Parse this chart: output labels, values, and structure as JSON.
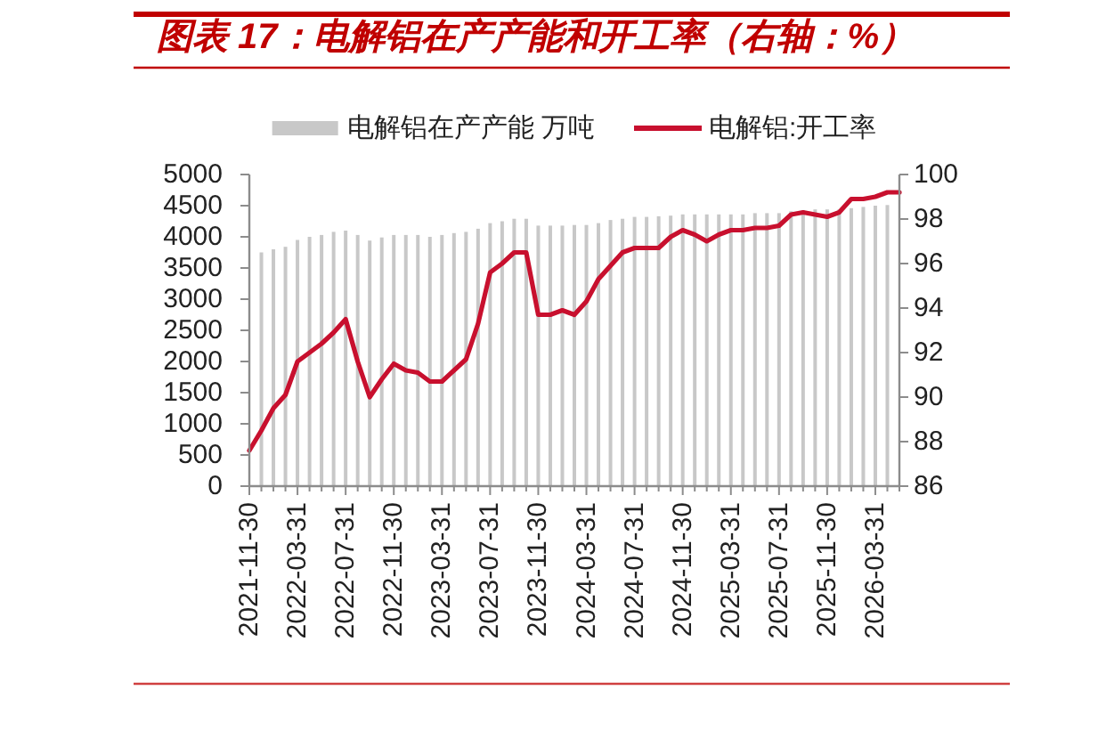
{
  "chart_data": {
    "type": "bar",
    "title": "图表 17：电解铝在产产能和开工率（右轴：%）",
    "categories": [
      "2021-11-30",
      null,
      null,
      null,
      "2022-03-31",
      null,
      null,
      null,
      "2022-07-31",
      null,
      null,
      null,
      "2022-11-30",
      null,
      null,
      null,
      "2023-03-31",
      null,
      null,
      null,
      "2023-07-31",
      null,
      null,
      null,
      "2023-11-30",
      null,
      null,
      null,
      "2024-03-31",
      null,
      null,
      null,
      "2024-07-31",
      null,
      null,
      null,
      "2024-11-30",
      null,
      null,
      null,
      "2025-03-31",
      null,
      null,
      null,
      "2025-07-31",
      null,
      null,
      null,
      "2025-11-30",
      null,
      null,
      null,
      "2026-03-31",
      null,
      null
    ],
    "series": [
      {
        "name": "电解铝在产产能 万吨",
        "color": "#c8c8c8",
        "values": [
          null,
          3750,
          3800,
          3840,
          3950,
          4000,
          4030,
          4080,
          4100,
          4030,
          3940,
          3990,
          4030,
          4030,
          4030,
          4000,
          4030,
          4060,
          4080,
          4130,
          4220,
          4250,
          4290,
          4290,
          4180,
          4180,
          4180,
          4190,
          4190,
          4220,
          4270,
          4290,
          4320,
          4320,
          4330,
          4340,
          4360,
          4360,
          4360,
          4360,
          4360,
          4360,
          4380,
          4380,
          4380,
          4410,
          4430,
          4440,
          4440,
          4440,
          4460,
          4480,
          4500,
          4510,
          null
        ]
      },
      {
        "name": "电解铝:开工率",
        "type": "line",
        "axis": "y2",
        "color": "#c8102e",
        "values": [
          87.6,
          88.5,
          89.5,
          90.1,
          91.6,
          92.0,
          92.4,
          92.9,
          93.5,
          91.6,
          90.0,
          90.8,
          91.5,
          91.2,
          91.1,
          90.7,
          90.7,
          91.2,
          91.7,
          93.3,
          95.6,
          96.0,
          96.5,
          96.5,
          93.7,
          93.7,
          93.9,
          93.7,
          94.3,
          95.3,
          95.9,
          96.5,
          96.7,
          96.7,
          96.7,
          97.2,
          97.5,
          97.3,
          97.0,
          97.3,
          97.5,
          97.5,
          97.6,
          97.6,
          97.7,
          98.2,
          98.3,
          98.2,
          98.1,
          98.3,
          98.9,
          98.9,
          99.0,
          99.2,
          99.2
        ]
      }
    ],
    "ylim": [
      0,
      5000
    ],
    "yticks": [
      0,
      500,
      1000,
      1500,
      2000,
      2500,
      3000,
      3500,
      4000,
      4500,
      5000
    ],
    "y2lim": [
      86,
      100
    ],
    "y2ticks": [
      86,
      88,
      90,
      92,
      94,
      96,
      98,
      100
    ],
    "legend": "top"
  }
}
